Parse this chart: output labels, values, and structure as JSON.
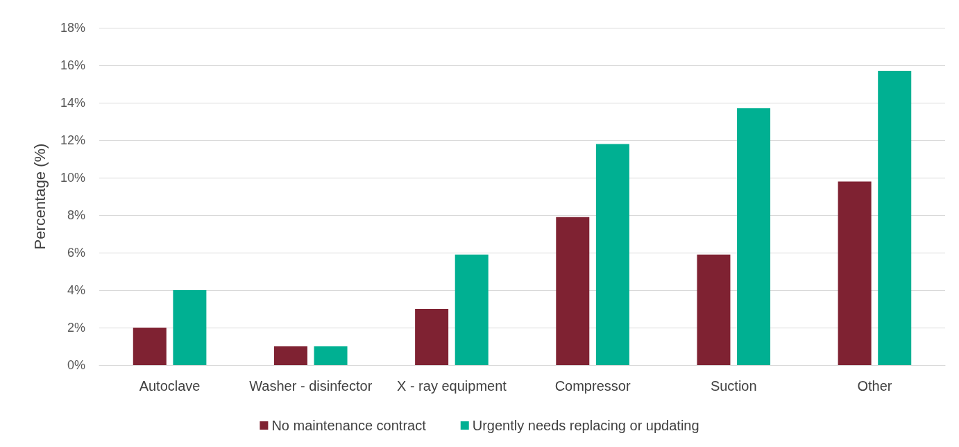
{
  "chart_data": {
    "type": "bar",
    "ylabel": "Percentage (%)",
    "categories": [
      "Autoclave",
      "Washer - disinfector",
      "X - ray equipment",
      "Compressor",
      "Suction",
      "Other"
    ],
    "series": [
      {
        "name": "No maintenance contract",
        "color": "#7f2232",
        "values": [
          2.0,
          1.0,
          3.0,
          7.9,
          5.9,
          9.8
        ]
      },
      {
        "name": "Urgently needs replacing or updating",
        "color": "#00b092",
        "values": [
          4.0,
          1.0,
          5.9,
          11.8,
          13.7,
          15.7
        ]
      }
    ],
    "ylim": [
      0,
      18
    ],
    "yticks": [
      {
        "value": 0,
        "label": "0%"
      },
      {
        "value": 2,
        "label": "2%"
      },
      {
        "value": 4,
        "label": "4%"
      },
      {
        "value": 6,
        "label": "6%"
      },
      {
        "value": 8,
        "label": "8%"
      },
      {
        "value": 10,
        "label": "10%"
      },
      {
        "value": 12,
        "label": "12%"
      },
      {
        "value": 14,
        "label": "14%"
      },
      {
        "value": 16,
        "label": "16%"
      },
      {
        "value": 18,
        "label": "18%"
      }
    ],
    "grid": "y",
    "legend": "bottom"
  }
}
